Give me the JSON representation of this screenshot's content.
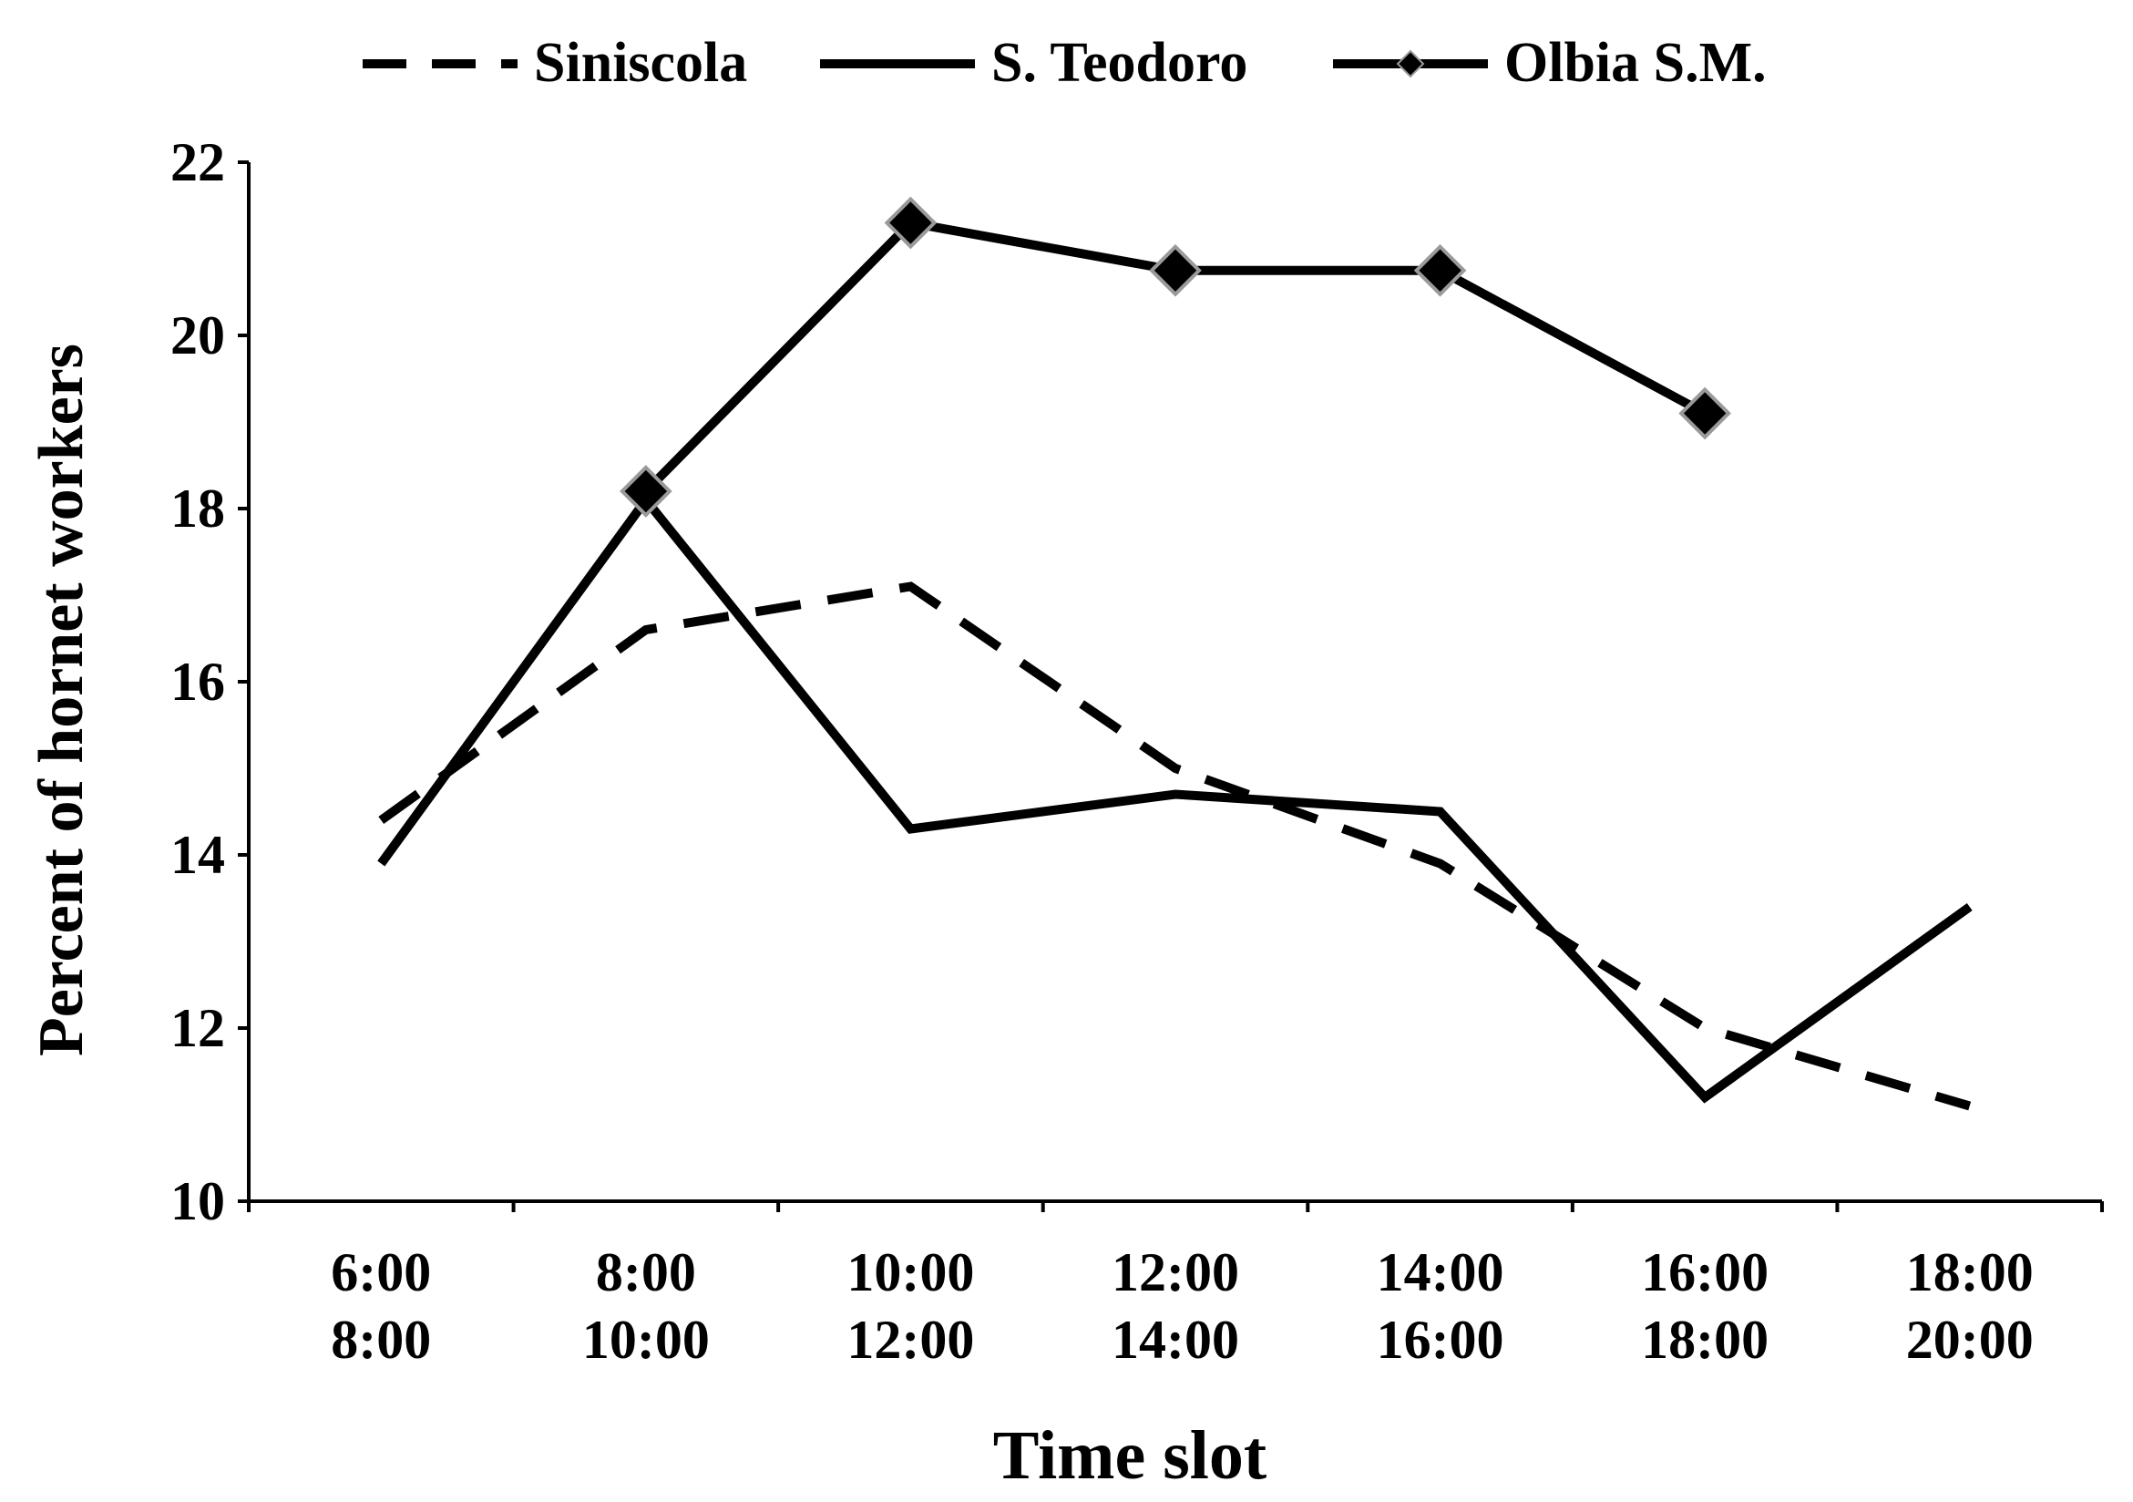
{
  "chart_data": {
    "type": "line",
    "title": "",
    "xlabel": "Time slot",
    "ylabel": "Percent of hornet workers",
    "ylim": [
      10,
      22
    ],
    "yticks": [
      10,
      12,
      14,
      16,
      18,
      20,
      22
    ],
    "grid": false,
    "legend_position": "top-center",
    "categories": [
      [
        "6:00",
        "8:00"
      ],
      [
        "8:00",
        "10:00"
      ],
      [
        "10:00",
        "12:00"
      ],
      [
        "12:00",
        "14:00"
      ],
      [
        "14:00",
        "16:00"
      ],
      [
        "16:00",
        "18:00"
      ],
      [
        "18:00",
        "20:00"
      ]
    ],
    "series": [
      {
        "name": "Siniscola",
        "style": "dashed",
        "marker": "none",
        "color": "#000000",
        "values": [
          14.4,
          16.6,
          17.1,
          15.0,
          13.9,
          12.0,
          11.1
        ]
      },
      {
        "name": "S. Teodoro",
        "style": "solid",
        "marker": "none",
        "color": "#000000",
        "values": [
          13.9,
          18.1,
          14.3,
          14.7,
          14.5,
          11.2,
          13.4
        ]
      },
      {
        "name": "Olbia S.M.",
        "style": "solid",
        "marker": "diamond",
        "color": "#000000",
        "values": [
          null,
          18.2,
          21.3,
          20.75,
          20.75,
          19.1,
          null
        ]
      }
    ]
  }
}
